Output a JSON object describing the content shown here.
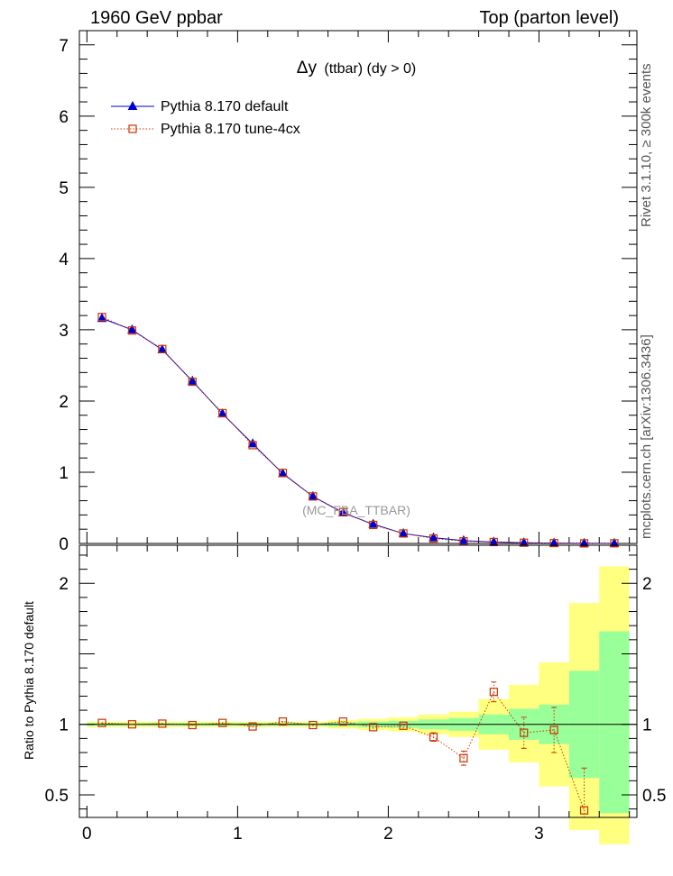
{
  "header": {
    "left": "1960 GeV ppbar",
    "right": "Top (parton level)"
  },
  "side_labels": {
    "rivet": "Rivet 3.1.10, ≥ 300k events",
    "mcplots": "mcplots.cern.ch [arXiv:1306.3436]"
  },
  "chart_data": [
    {
      "type": "line",
      "title": "Δy (ttbar) (dy > 0)",
      "title_parts": {
        "main": "Δy",
        "detail": "(ttbar) (dy > 0)"
      },
      "watermark": "(MC_FBA_TTBAR)",
      "xlim": [
        -0.05,
        3.65
      ],
      "ylim": [
        0,
        7.2
      ],
      "y_ticks": [
        0,
        1,
        2,
        3,
        4,
        5,
        6,
        7
      ],
      "y_tick_labels": [
        "0",
        "1",
        "2",
        "3",
        "4",
        "5",
        "6",
        "7"
      ],
      "legend_position": "top-left",
      "x": [
        0.1,
        0.3,
        0.5,
        0.7,
        0.9,
        1.1,
        1.3,
        1.5,
        1.7,
        1.9,
        2.1,
        2.3,
        2.5,
        2.7,
        2.9,
        3.1,
        3.3,
        3.5
      ],
      "series": [
        {
          "name": "Pythia 8.170 default",
          "color": "#0000cc",
          "marker": "triangle",
          "line": "solid",
          "values": [
            3.16,
            3.0,
            2.72,
            2.28,
            1.82,
            1.4,
            0.98,
            0.66,
            0.43,
            0.27,
            0.14,
            0.08,
            0.04,
            0.02,
            0.01,
            0.005,
            0.003,
            0.002
          ]
        },
        {
          "name": "Pythia 8.170 tune-4cx",
          "color": "#cc3300",
          "marker": "open-square",
          "line": "dotted",
          "values": [
            3.18,
            2.99,
            2.73,
            2.27,
            1.83,
            1.38,
            0.99,
            0.66,
            0.44,
            0.26,
            0.14,
            0.07,
            0.03,
            0.02,
            0.01,
            0.005,
            0.001,
            0.002
          ]
        }
      ]
    },
    {
      "type": "line",
      "ylabel": "Ratio to Pythia 8.170 default",
      "xlim": [
        -0.05,
        3.65
      ],
      "ylim": [
        0.34,
        2.27
      ],
      "y_ticks": [
        0.5,
        1,
        2
      ],
      "y_tick_labels": [
        "0.5",
        "1",
        "2"
      ],
      "x_ticks": [
        0,
        1,
        2,
        3
      ],
      "x_tick_labels": [
        "0",
        "1",
        "2",
        "3"
      ],
      "reference_line": 1,
      "bin_edges": [
        0,
        0.2,
        0.4,
        0.6,
        0.8,
        1.0,
        1.2,
        1.4,
        1.6,
        1.8,
        2.0,
        2.2,
        2.4,
        2.6,
        2.8,
        3.0,
        3.2,
        3.4,
        3.6
      ],
      "band_1sigma": {
        "color": "#99ff99",
        "low": [
          0.99,
          0.99,
          0.99,
          0.99,
          0.99,
          0.99,
          0.99,
          0.99,
          0.985,
          0.98,
          0.975,
          0.965,
          0.955,
          0.93,
          0.89,
          0.86,
          0.62,
          0.37
        ],
        "high": [
          1.01,
          1.01,
          1.01,
          1.01,
          1.01,
          1.01,
          1.01,
          1.01,
          1.015,
          1.02,
          1.025,
          1.035,
          1.045,
          1.07,
          1.11,
          1.14,
          1.38,
          1.66
        ]
      },
      "band_2sigma": {
        "color": "#ffff80",
        "low": [
          0.98,
          0.98,
          0.98,
          0.98,
          0.98,
          0.98,
          0.98,
          0.98,
          0.97,
          0.96,
          0.95,
          0.93,
          0.91,
          0.82,
          0.73,
          0.56,
          0.25,
          0.15
        ],
        "high": [
          1.02,
          1.02,
          1.02,
          1.02,
          1.02,
          1.02,
          1.02,
          1.02,
          1.03,
          1.04,
          1.05,
          1.07,
          1.09,
          1.18,
          1.28,
          1.44,
          1.86,
          2.12
        ]
      },
      "x": [
        0.1,
        0.3,
        0.5,
        0.7,
        0.9,
        1.1,
        1.3,
        1.5,
        1.7,
        1.9,
        2.1,
        2.3,
        2.5,
        2.7,
        2.9,
        3.1,
        3.3
      ],
      "series": [
        {
          "name": "Pythia 8.170 tune-4cx",
          "color": "#cc3300",
          "marker": "open-square",
          "line": "dotted",
          "values": [
            1.01,
            1.0,
            1.005,
            0.995,
            1.01,
            0.985,
            1.02,
            0.995,
            1.02,
            0.98,
            0.99,
            0.91,
            0.76,
            1.23,
            0.94,
            0.96,
            0.39
          ],
          "err_low": [
            0.005,
            0.005,
            0.005,
            0.005,
            0.006,
            0.006,
            0.007,
            0.008,
            0.01,
            0.012,
            0.02,
            0.03,
            0.05,
            0.07,
            0.11,
            0.16,
            0.3
          ],
          "err_high": [
            0.005,
            0.005,
            0.005,
            0.005,
            0.006,
            0.006,
            0.007,
            0.008,
            0.01,
            0.012,
            0.02,
            0.03,
            0.05,
            0.07,
            0.11,
            0.16,
            0.3
          ]
        }
      ]
    }
  ]
}
